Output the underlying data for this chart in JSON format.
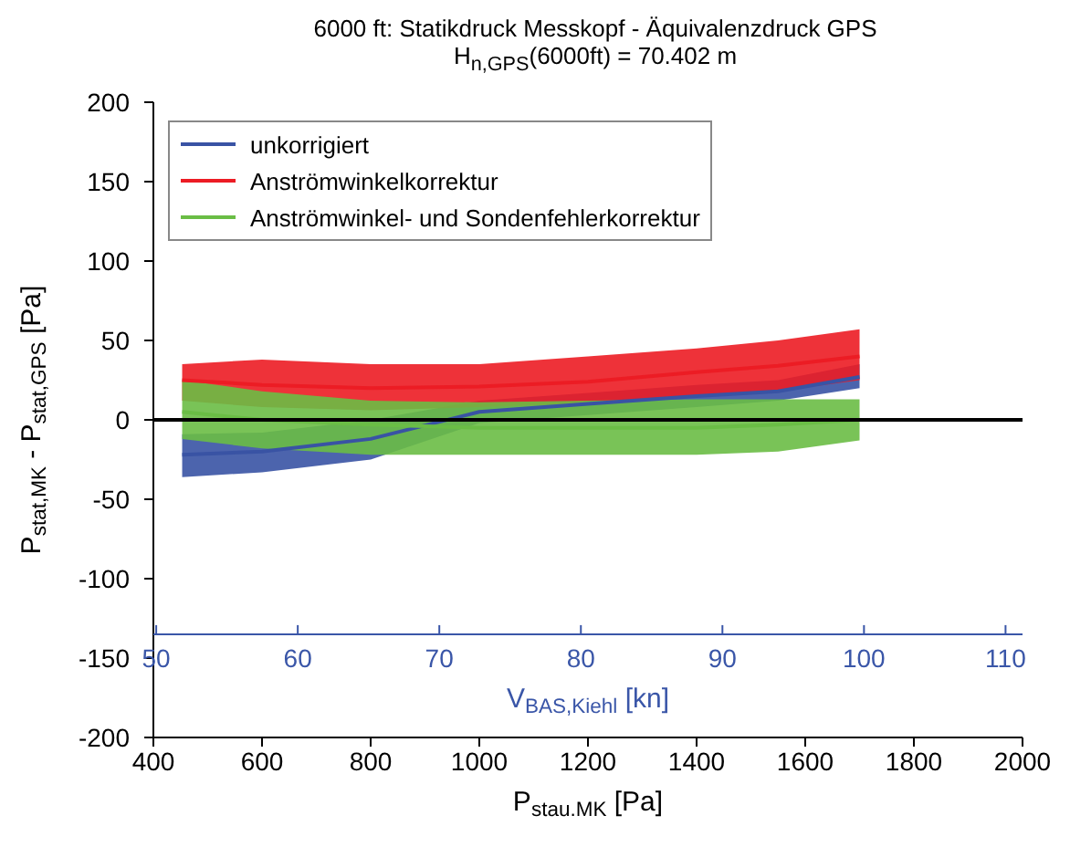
{
  "chart_data": {
    "type": "line",
    "title": "6000 ft: Statikdruck Messkopf - Äquivalenzdruck GPS",
    "subtitle": "H$_{n,GPS}$(6000ft) = 70.402 m",
    "xlabel": "P$_{stau.MK}$ [Pa]",
    "ylabel": "P$_{stat,MK}$ - P$_{stat,GPS}$ [Pa]",
    "x2label": "V$_{BAS,Kiehl}$ [kn]",
    "x": [
      453,
      600,
      800,
      1000,
      1200,
      1400,
      1550,
      1700
    ],
    "series": [
      {
        "name": "unkorrigiert",
        "color": "#3953a4",
        "values": [
          -22,
          -20,
          -12,
          5,
          10,
          15,
          18,
          27
        ],
        "lower": [
          -36,
          -33,
          -25,
          -2,
          3,
          8,
          12,
          20
        ],
        "upper": [
          -9,
          -8,
          0,
          12,
          17,
          22,
          25,
          35
        ]
      },
      {
        "name": "Anströmwinkelkorrektur",
        "color": "#ec1c24",
        "values": [
          25,
          22,
          20,
          21,
          24,
          30,
          34,
          40
        ],
        "lower": [
          12,
          8,
          6,
          8,
          10,
          15,
          18,
          25
        ],
        "upper": [
          35,
          38,
          35,
          35,
          40,
          45,
          50,
          57
        ]
      },
      {
        "name": "Anströmwinkel- und Sondenfehlerkorrektur",
        "color": "#6abd45",
        "values": [
          5,
          0,
          -3,
          -5,
          -5,
          -5,
          -3,
          0
        ],
        "lower": [
          -12,
          -18,
          -22,
          -22,
          -22,
          -22,
          -20,
          -13
        ],
        "upper": [
          25,
          18,
          12,
          11,
          12,
          13,
          13,
          13
        ]
      }
    ],
    "xlim": [
      400,
      2000
    ],
    "xticks": [
      400,
      600,
      800,
      1000,
      1200,
      1400,
      1600,
      1800,
      2000
    ],
    "ylim": [
      -200,
      200
    ],
    "yticks": [
      -200,
      -150,
      -100,
      -50,
      0,
      50,
      100,
      150,
      200
    ],
    "x2lim": [
      49.8,
      111.2
    ],
    "x2ticks": [
      50,
      60,
      70,
      80,
      90,
      100,
      110
    ],
    "ref_lines": [
      {
        "axis": "y",
        "value": 0,
        "color": "#000000"
      }
    ],
    "legend": "top left",
    "grid": false,
    "marker": "none",
    "line_style": "solid"
  }
}
